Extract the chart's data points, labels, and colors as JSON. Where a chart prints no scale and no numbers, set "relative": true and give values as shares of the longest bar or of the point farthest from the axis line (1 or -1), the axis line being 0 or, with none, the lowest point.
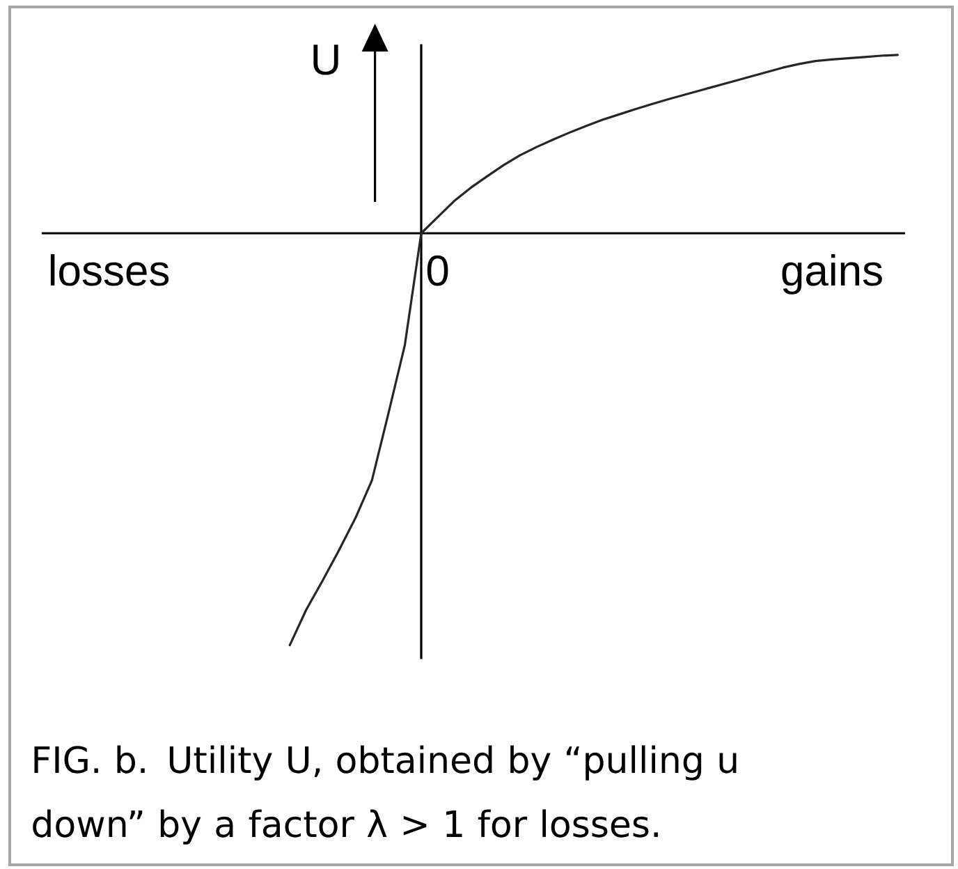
{
  "chart_data": {
    "type": "line",
    "relative": true,
    "categories": [
      null,
      null,
      null,
      null,
      "losses",
      null,
      null,
      null,
      null,
      null,
      null,
      null,
      null,
      null,
      null,
      null,
      null,
      null,
      null,
      null,
      null,
      null,
      null,
      null,
      "0",
      null,
      null,
      null,
      null,
      null,
      null,
      null,
      null,
      null,
      null,
      null,
      null,
      null,
      null,
      null,
      null,
      null,
      null,
      null,
      null,
      null,
      null,
      null,
      "gains",
      null,
      null,
      null,
      null
    ],
    "values": [
      null,
      null,
      null,
      null,
      null,
      null,
      null,
      null,
      null,
      null,
      null,
      null,
      null,
      null,
      null,
      -1,
      -0.914,
      -0.843,
      -0.769,
      -0.691,
      -0.6,
      -0.438,
      -0.272,
      0,
      0.039,
      0.078,
      0.11,
      0.138,
      0.165,
      0.189,
      0.209,
      0.227,
      0.244,
      0.26,
      0.275,
      0.288,
      0.301,
      0.313,
      0.325,
      0.336,
      0.347,
      0.358,
      0.369,
      0.38,
      0.391,
      0.402,
      0.411,
      0.418,
      0.422,
      0.425,
      0.428,
      0.431,
      0.433
    ],
    "color": "#262626",
    "marker": "none",
    "line_style": "solid",
    "tick_labels": "x",
    "ylabel": "U",
    "annotations": [
      "FIG. b. Utility U, obtained by “pulling u down” by a factor λ > 1 for losses."
    ]
  }
}
